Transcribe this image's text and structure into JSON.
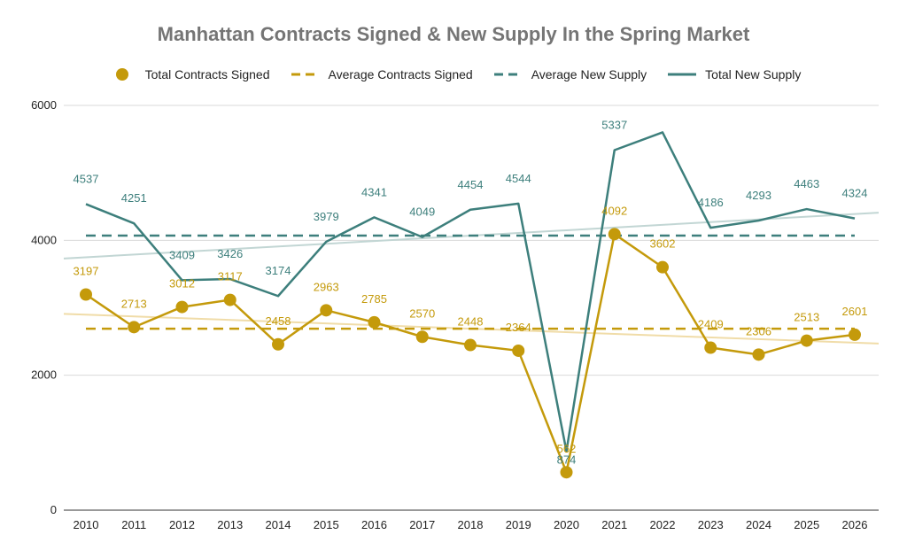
{
  "chart_data": {
    "type": "line",
    "title": "Manhattan Contracts Signed & New Supply In the Spring Market",
    "xlabel": "",
    "ylabel": "",
    "x": [
      "2010",
      "2011",
      "2012",
      "2013",
      "2014",
      "2015",
      "2016",
      "2017",
      "2018",
      "2019",
      "2020",
      "2021",
      "2022",
      "2023",
      "2024",
      "2025",
      "2026"
    ],
    "ylim": [
      0,
      6000
    ],
    "yticks": [
      "0",
      "2000",
      "4000",
      "6000"
    ],
    "grid": true,
    "legend_position": "top",
    "series": [
      {
        "name": "Total Contracts Signed",
        "color": "#c49a0b",
        "style": "line-with-markers",
        "values": [
          3197,
          2713,
          3012,
          3117,
          2458,
          2963,
          2785,
          2570,
          2448,
          2364,
          562,
          4092,
          3602,
          2409,
          2306,
          2513,
          2601
        ],
        "labels": [
          "3197",
          "2713",
          "3012",
          "3117",
          "2458",
          "2963",
          "2785",
          "2570",
          "2448",
          "2364",
          "562",
          "4092",
          "3602",
          "2409",
          "2306",
          "2513",
          "2601"
        ]
      },
      {
        "name": "Average Contracts Signed",
        "color": "#c49a0b",
        "style": "dashed",
        "value": 2690
      },
      {
        "name": "Average New Supply",
        "color": "#3d7f7c",
        "style": "dashed",
        "value": 4070
      },
      {
        "name": "Total New Supply",
        "color": "#3d7f7c",
        "style": "line",
        "values": [
          4537,
          4251,
          3409,
          3426,
          3174,
          3979,
          4341,
          4049,
          4454,
          4544,
          874,
          5337,
          5600,
          4186,
          4293,
          4463,
          4324
        ],
        "labels": [
          "4537",
          "4251",
          "3409",
          "3426",
          "3174",
          "3979",
          "4341",
          "4049",
          "4454",
          "4544",
          "874",
          "5337",
          "",
          "4186",
          "4293",
          "4463",
          "4324"
        ]
      }
    ],
    "trendlines": [
      {
        "of": "Total Contracts Signed",
        "color": "#f0dca8",
        "from": 2910,
        "to": 2470
      },
      {
        "of": "Total New Supply",
        "color": "#c2d6d4",
        "from": 3730,
        "to": 4410
      }
    ]
  }
}
